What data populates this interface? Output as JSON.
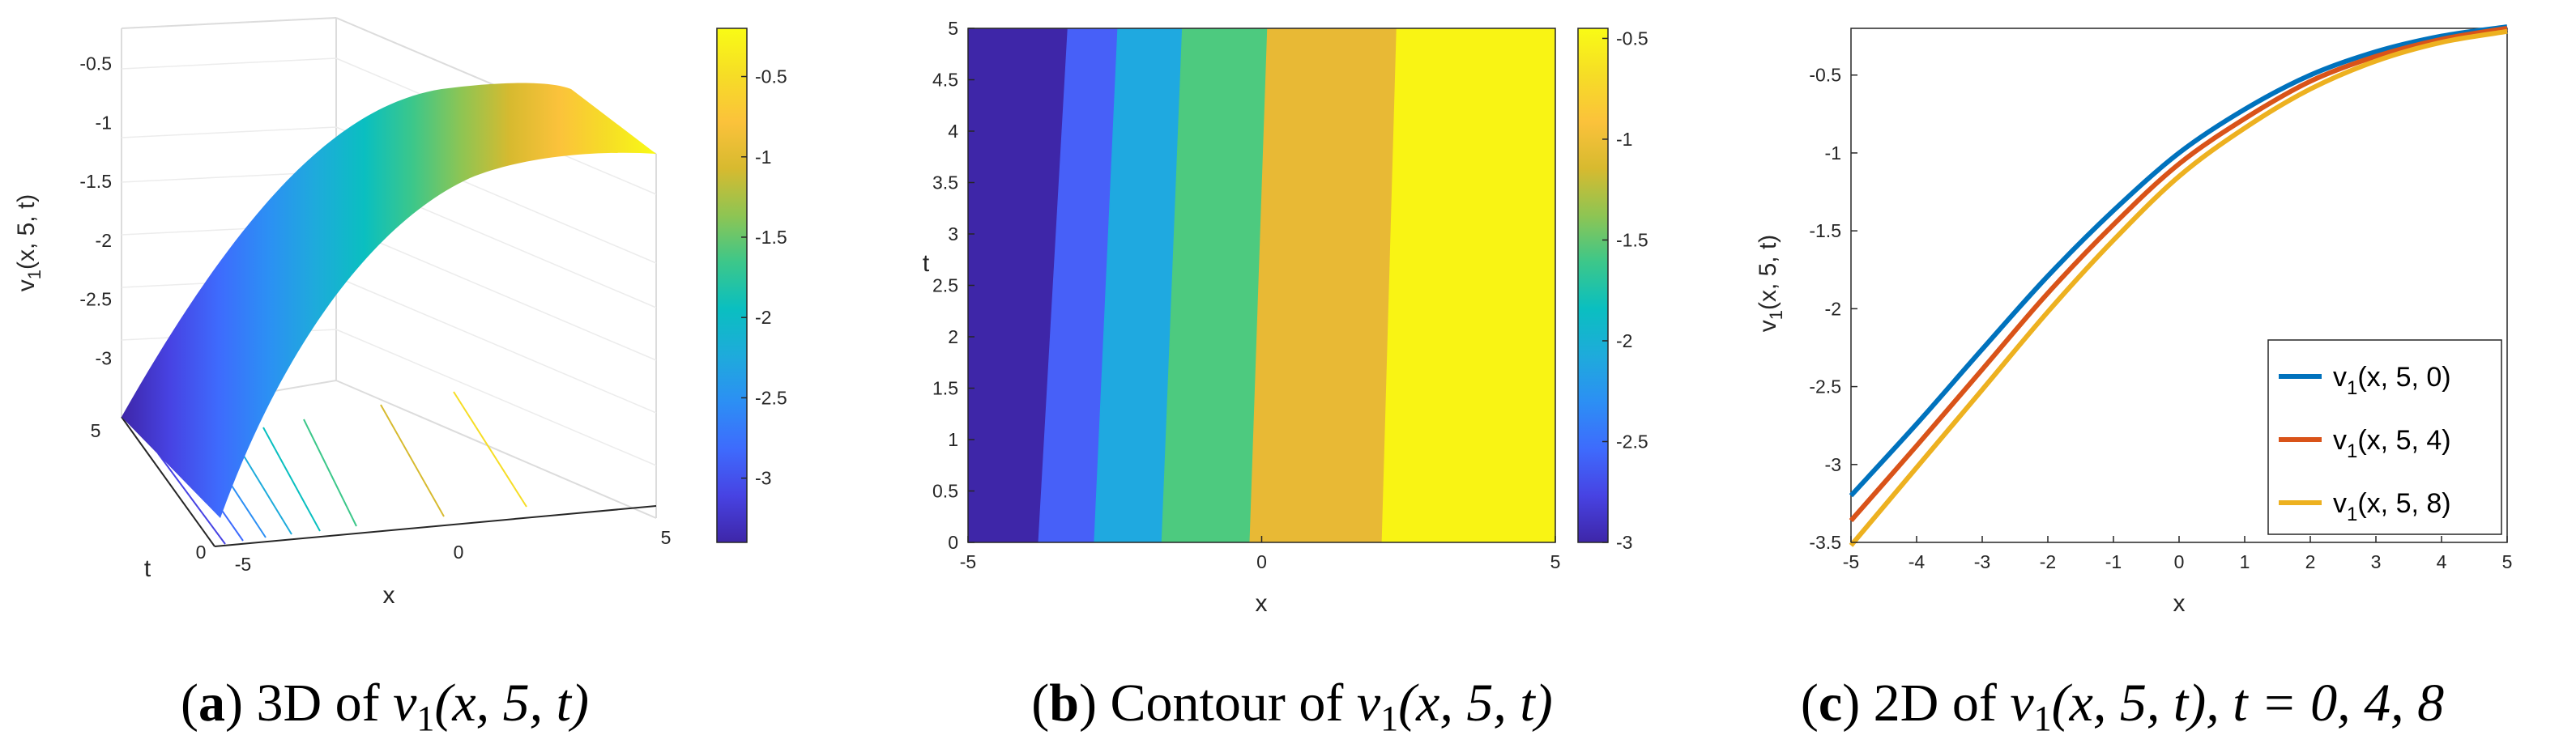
{
  "colors": {
    "parula": [
      "#3e26a8",
      "#4743e3",
      "#3e6bfd",
      "#2c8ff4",
      "#1eabdb",
      "#0abfc0",
      "#3cc78a",
      "#8ec553",
      "#d7ba2f",
      "#fbc23b",
      "#f6dd26",
      "#f9fb15"
    ],
    "series": [
      "#0072bd",
      "#d95319",
      "#edb120"
    ],
    "contour_bands": [
      "#3e26a8",
      "#4760f8",
      "#1fa9e0",
      "#4dca7f",
      "#e8b935",
      "#f9f414"
    ]
  },
  "captions": {
    "a": {
      "letter": "a",
      "desc": "3D of ",
      "math": "v",
      "sub": "1",
      "args": "(x, 5, t)"
    },
    "b": {
      "letter": "b",
      "desc": "Contour of ",
      "math": "v",
      "sub": "1",
      "args": "(x, 5, t)"
    },
    "c": {
      "letter": "c",
      "desc": "2D of ",
      "math": "v",
      "sub": "1",
      "args": "(x, 5, t)",
      "extra": ", t = 0, 4, 8"
    }
  },
  "chart_data": [
    {
      "id": "a",
      "type": "surface",
      "xlabel": "x",
      "ylabel": "t",
      "zlabel": "v1(x, 5, t)",
      "x_ticks": [
        "-5",
        "0",
        "5"
      ],
      "t_ticks": [
        "0",
        "5"
      ],
      "z_ticks": [
        "-0.5",
        "-1",
        "-1.5",
        "-2",
        "-2.5",
        "-3"
      ],
      "colorbar": {
        "ticks": [
          "-0.5",
          "-1",
          "-1.5",
          "-2",
          "-2.5",
          "-3"
        ],
        "range": [
          -3.4,
          -0.2
        ]
      },
      "xlim": [
        -5,
        5
      ],
      "tlim": [
        0,
        8
      ],
      "zlim": [
        -3.5,
        -0.2
      ],
      "surface_profile_x": [
        -5,
        -4,
        -3,
        -2,
        -1,
        0,
        1,
        2,
        3,
        4,
        5
      ],
      "surface_profile_v": [
        -3.25,
        -2.85,
        -2.42,
        -1.97,
        -1.55,
        -1.17,
        -0.86,
        -0.61,
        -0.42,
        -0.29,
        -0.22
      ]
    },
    {
      "id": "b",
      "type": "heatmap",
      "xlabel": "x",
      "ylabel": "t",
      "x_ticks": [
        "-5",
        "0",
        "5"
      ],
      "y_ticks": [
        "0",
        "0.5",
        "1",
        "1.5",
        "2",
        "2.5",
        "3",
        "3.5",
        "4",
        "4.5",
        "5"
      ],
      "xlim": [
        -5,
        5
      ],
      "ylim": [
        0,
        5
      ],
      "colorbar": {
        "ticks": [
          "-0.5",
          "-1",
          "-1.5",
          "-2",
          "-2.5",
          "-3"
        ],
        "range": [
          -3,
          -0.45
        ]
      },
      "band_boundaries_x_at_t0": [
        -3.8,
        -2.85,
        -1.7,
        -0.2,
        2.05
      ],
      "band_boundaries_x_at_t5": [
        -3.3,
        -2.45,
        -1.35,
        0.1,
        2.3
      ]
    },
    {
      "id": "c",
      "type": "line",
      "xlabel": "x",
      "ylabel": "v1(x, 5, t)",
      "x": [
        -5,
        -4,
        -3,
        -2,
        -1,
        0,
        1,
        2,
        3,
        4,
        5
      ],
      "x_ticks": [
        "-5",
        "-4",
        "-3",
        "-2",
        "-1",
        "0",
        "1",
        "2",
        "3",
        "4",
        "5"
      ],
      "y_ticks": [
        "-0.5",
        "-1",
        "-1.5",
        "-2",
        "-2.5",
        "-3",
        "-3.5"
      ],
      "xlim": [
        -5,
        5
      ],
      "ylim": [
        -3.5,
        -0.2
      ],
      "legend_position": "bottom-right",
      "series": [
        {
          "name": "v1(x, 5, 0)",
          "label_main": "v",
          "label_sub": "1",
          "label_rest": "(x, 5, 0)",
          "values": [
            -3.2,
            -2.74,
            -2.26,
            -1.79,
            -1.37,
            -1.0,
            -0.72,
            -0.5,
            -0.35,
            -0.25,
            -0.19
          ]
        },
        {
          "name": "v1(x, 5, 4)",
          "label_main": "v",
          "label_sub": "1",
          "label_rest": "(x, 5, 4)",
          "values": [
            -3.36,
            -2.88,
            -2.39,
            -1.9,
            -1.46,
            -1.07,
            -0.78,
            -0.54,
            -0.38,
            -0.27,
            -0.2
          ]
        },
        {
          "name": "v1(x, 5, 8)",
          "label_main": "v",
          "label_sub": "1",
          "label_rest": "(x, 5, 8)",
          "values": [
            -3.52,
            -3.02,
            -2.52,
            -2.02,
            -1.56,
            -1.15,
            -0.84,
            -0.59,
            -0.41,
            -0.29,
            -0.22
          ]
        }
      ]
    }
  ]
}
